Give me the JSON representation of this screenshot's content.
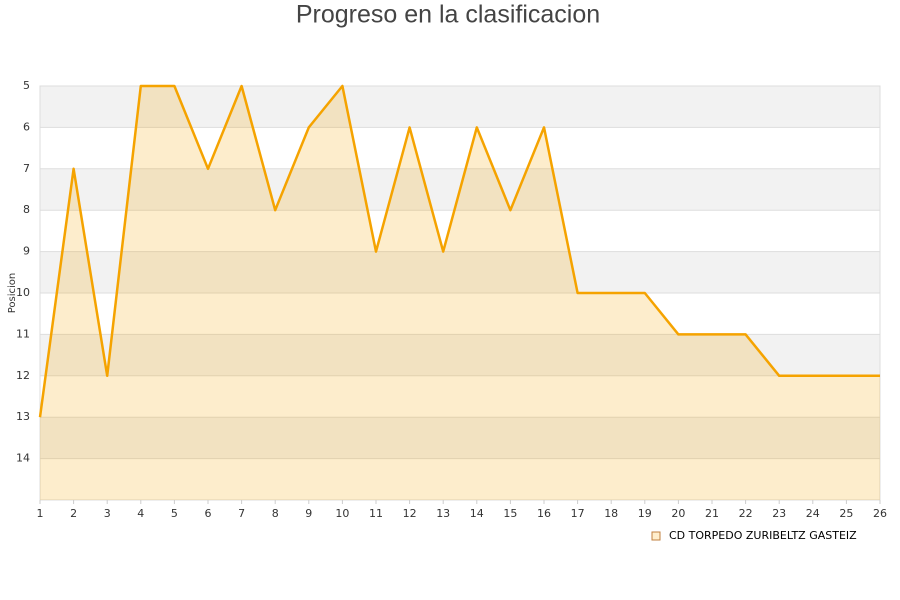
{
  "chart_data": {
    "type": "area",
    "title": "Progreso en la clasificacion",
    "y_label": "Posicion",
    "x": [
      1,
      2,
      3,
      4,
      5,
      6,
      7,
      8,
      9,
      10,
      11,
      12,
      13,
      14,
      15,
      16,
      17,
      18,
      19,
      20,
      21,
      22,
      23,
      24,
      25,
      26
    ],
    "series": [
      {
        "name": "CD TORPEDO ZURIBELTZ GASTEIZ",
        "color": "#f5a300",
        "values": [
          13,
          7,
          12,
          5,
          5,
          7,
          5,
          8,
          6,
          5,
          9,
          6,
          9,
          6,
          8,
          6,
          10,
          10,
          10,
          11,
          11,
          11,
          12,
          12,
          12,
          12
        ]
      }
    ],
    "xlim": [
      1,
      26
    ],
    "xticks": [
      1,
      2,
      3,
      4,
      5,
      6,
      7,
      8,
      9,
      10,
      11,
      12,
      13,
      14,
      15,
      16,
      17,
      18,
      19,
      20,
      21,
      22,
      23,
      24,
      25,
      26
    ],
    "ylim": [
      15,
      5
    ],
    "yticks": [
      5,
      6,
      7,
      8,
      9,
      10,
      11,
      12,
      13,
      14
    ],
    "grid": true,
    "legend": "bottom-right"
  }
}
